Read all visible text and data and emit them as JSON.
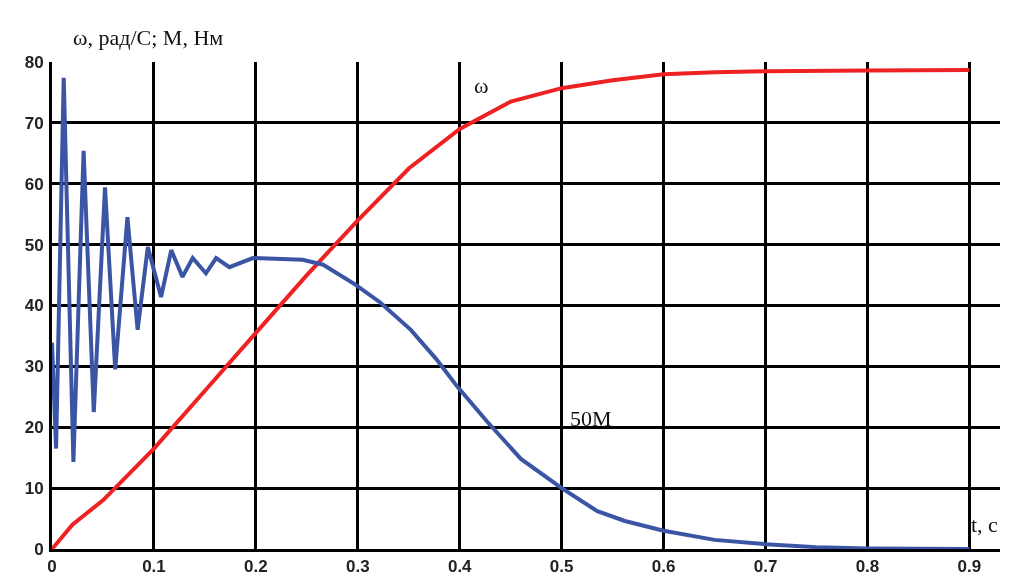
{
  "chart_data": {
    "type": "line",
    "ylabel": "ω, рад/С; М, Нм",
    "xlabel": "t, с",
    "xlim": [
      0,
      0.93
    ],
    "xticks": [
      0,
      0.1,
      0.2,
      0.3,
      0.4,
      0.5,
      0.6,
      0.7,
      0.8,
      0.9
    ],
    "ylim": [
      0,
      80
    ],
    "yticks": [
      0,
      10,
      20,
      30,
      40,
      50,
      60,
      70,
      80
    ],
    "grid": true,
    "legend": false,
    "marker": "none",
    "line_style": "solid",
    "series": [
      {
        "name": "ω",
        "color": "#ee2222",
        "x": [
          0,
          0.005,
          0.02,
          0.05,
          0.1,
          0.15,
          0.2,
          0.25,
          0.3,
          0.35,
          0.4,
          0.45,
          0.5,
          0.55,
          0.6,
          0.65,
          0.7,
          0.8,
          0.9
        ],
        "values": [
          0,
          1,
          4,
          8,
          16.5,
          26,
          35.5,
          45,
          54,
          62.5,
          69,
          73.5,
          75.7,
          77,
          78,
          78.3,
          78.5,
          78.6,
          78.7
        ]
      },
      {
        "name": "50М",
        "color": "#3a55a4",
        "x": [
          0,
          0.004,
          0.0115,
          0.021,
          0.031,
          0.041,
          0.052,
          0.062,
          0.074,
          0.084,
          0.094,
          0.107,
          0.117,
          0.128,
          0.138,
          0.151,
          0.161,
          0.174,
          0.197,
          0.246,
          0.266,
          0.298,
          0.322,
          0.352,
          0.377,
          0.397,
          0.427,
          0.46,
          0.5,
          0.535,
          0.562,
          0.6,
          0.65,
          0.7,
          0.75,
          0.8,
          0.9
        ],
        "values": [
          33.9,
          16.5,
          77.4,
          14.3,
          65.4,
          22.5,
          59.4,
          29.5,
          54.5,
          36,
          49.6,
          41.4,
          49.1,
          44.7,
          47.8,
          45.3,
          47.8,
          46.3,
          47.8,
          47.5,
          46.7,
          43.4,
          40.5,
          36,
          31.2,
          26.8,
          20.9,
          14.8,
          10,
          6.2,
          4.6,
          3,
          1.5,
          0.8,
          0.3,
          0.1,
          0
        ]
      }
    ]
  }
}
